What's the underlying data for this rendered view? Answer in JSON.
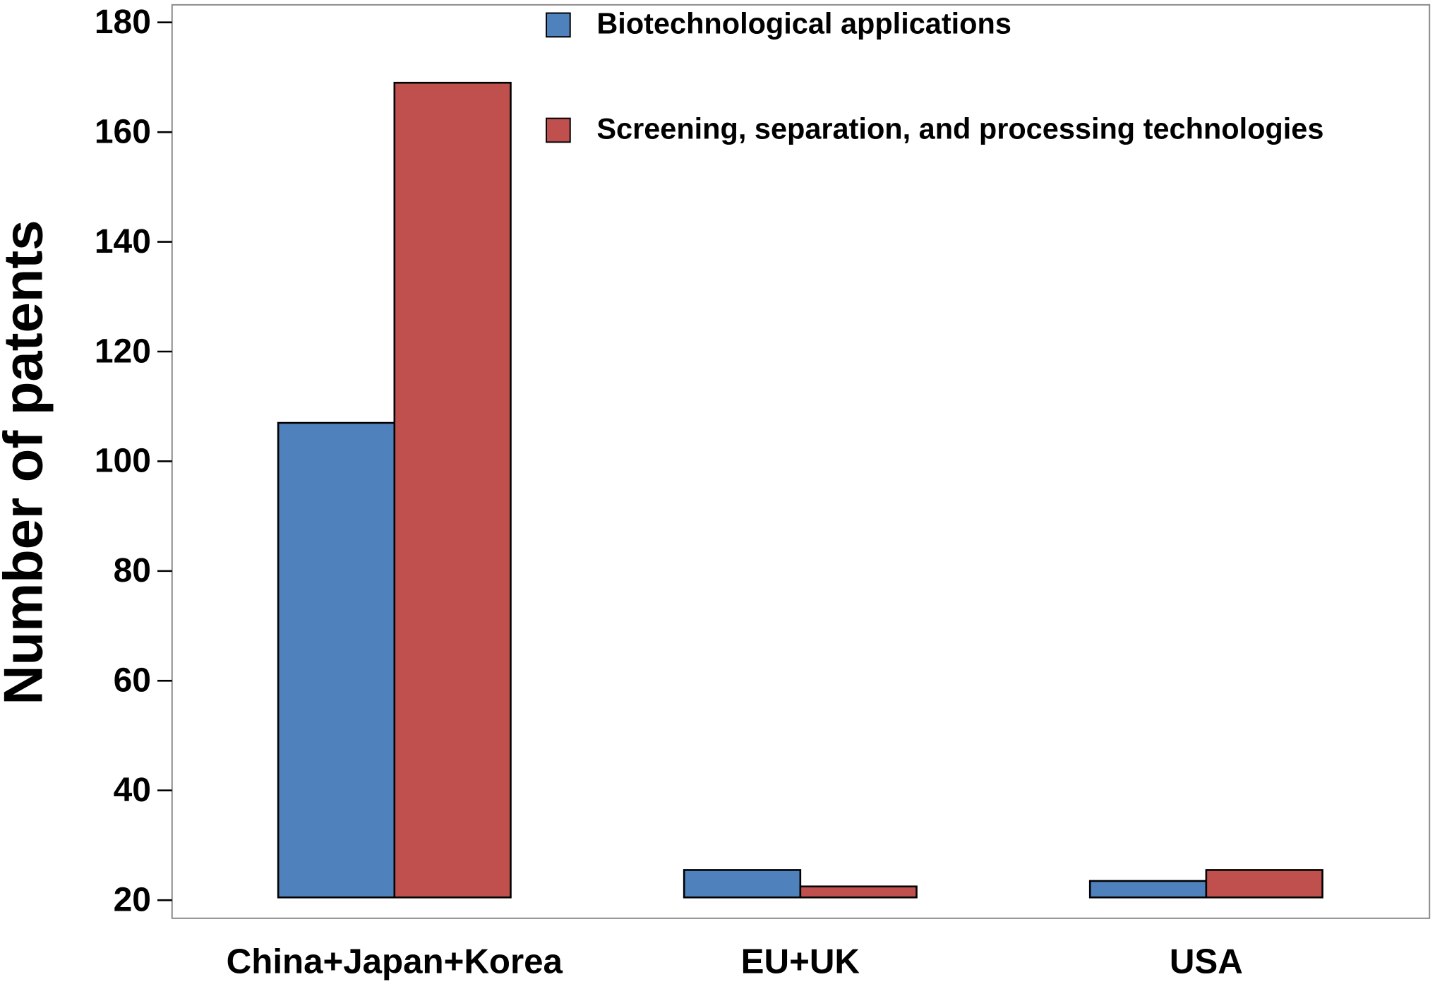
{
  "chart_data": {
    "type": "bar",
    "y_label": "Number of patents",
    "categories": [
      "China+Japan+Korea",
      "EU+UK",
      "USA"
    ],
    "series": [
      {
        "name": "Biotechnological applications",
        "color": "#4f81bd",
        "values": [
          107,
          25.5,
          23.5
        ]
      },
      {
        "name": "Screening, separation, and processing technologies",
        "color": "#c0504d",
        "values": [
          169,
          22.5,
          25.5
        ]
      }
    ],
    "ylim": [
      16.7,
      183.2
    ],
    "yticks": [
      20,
      40,
      60,
      80,
      100,
      120,
      140,
      160,
      180
    ],
    "legend": "top-right",
    "grid": false
  }
}
